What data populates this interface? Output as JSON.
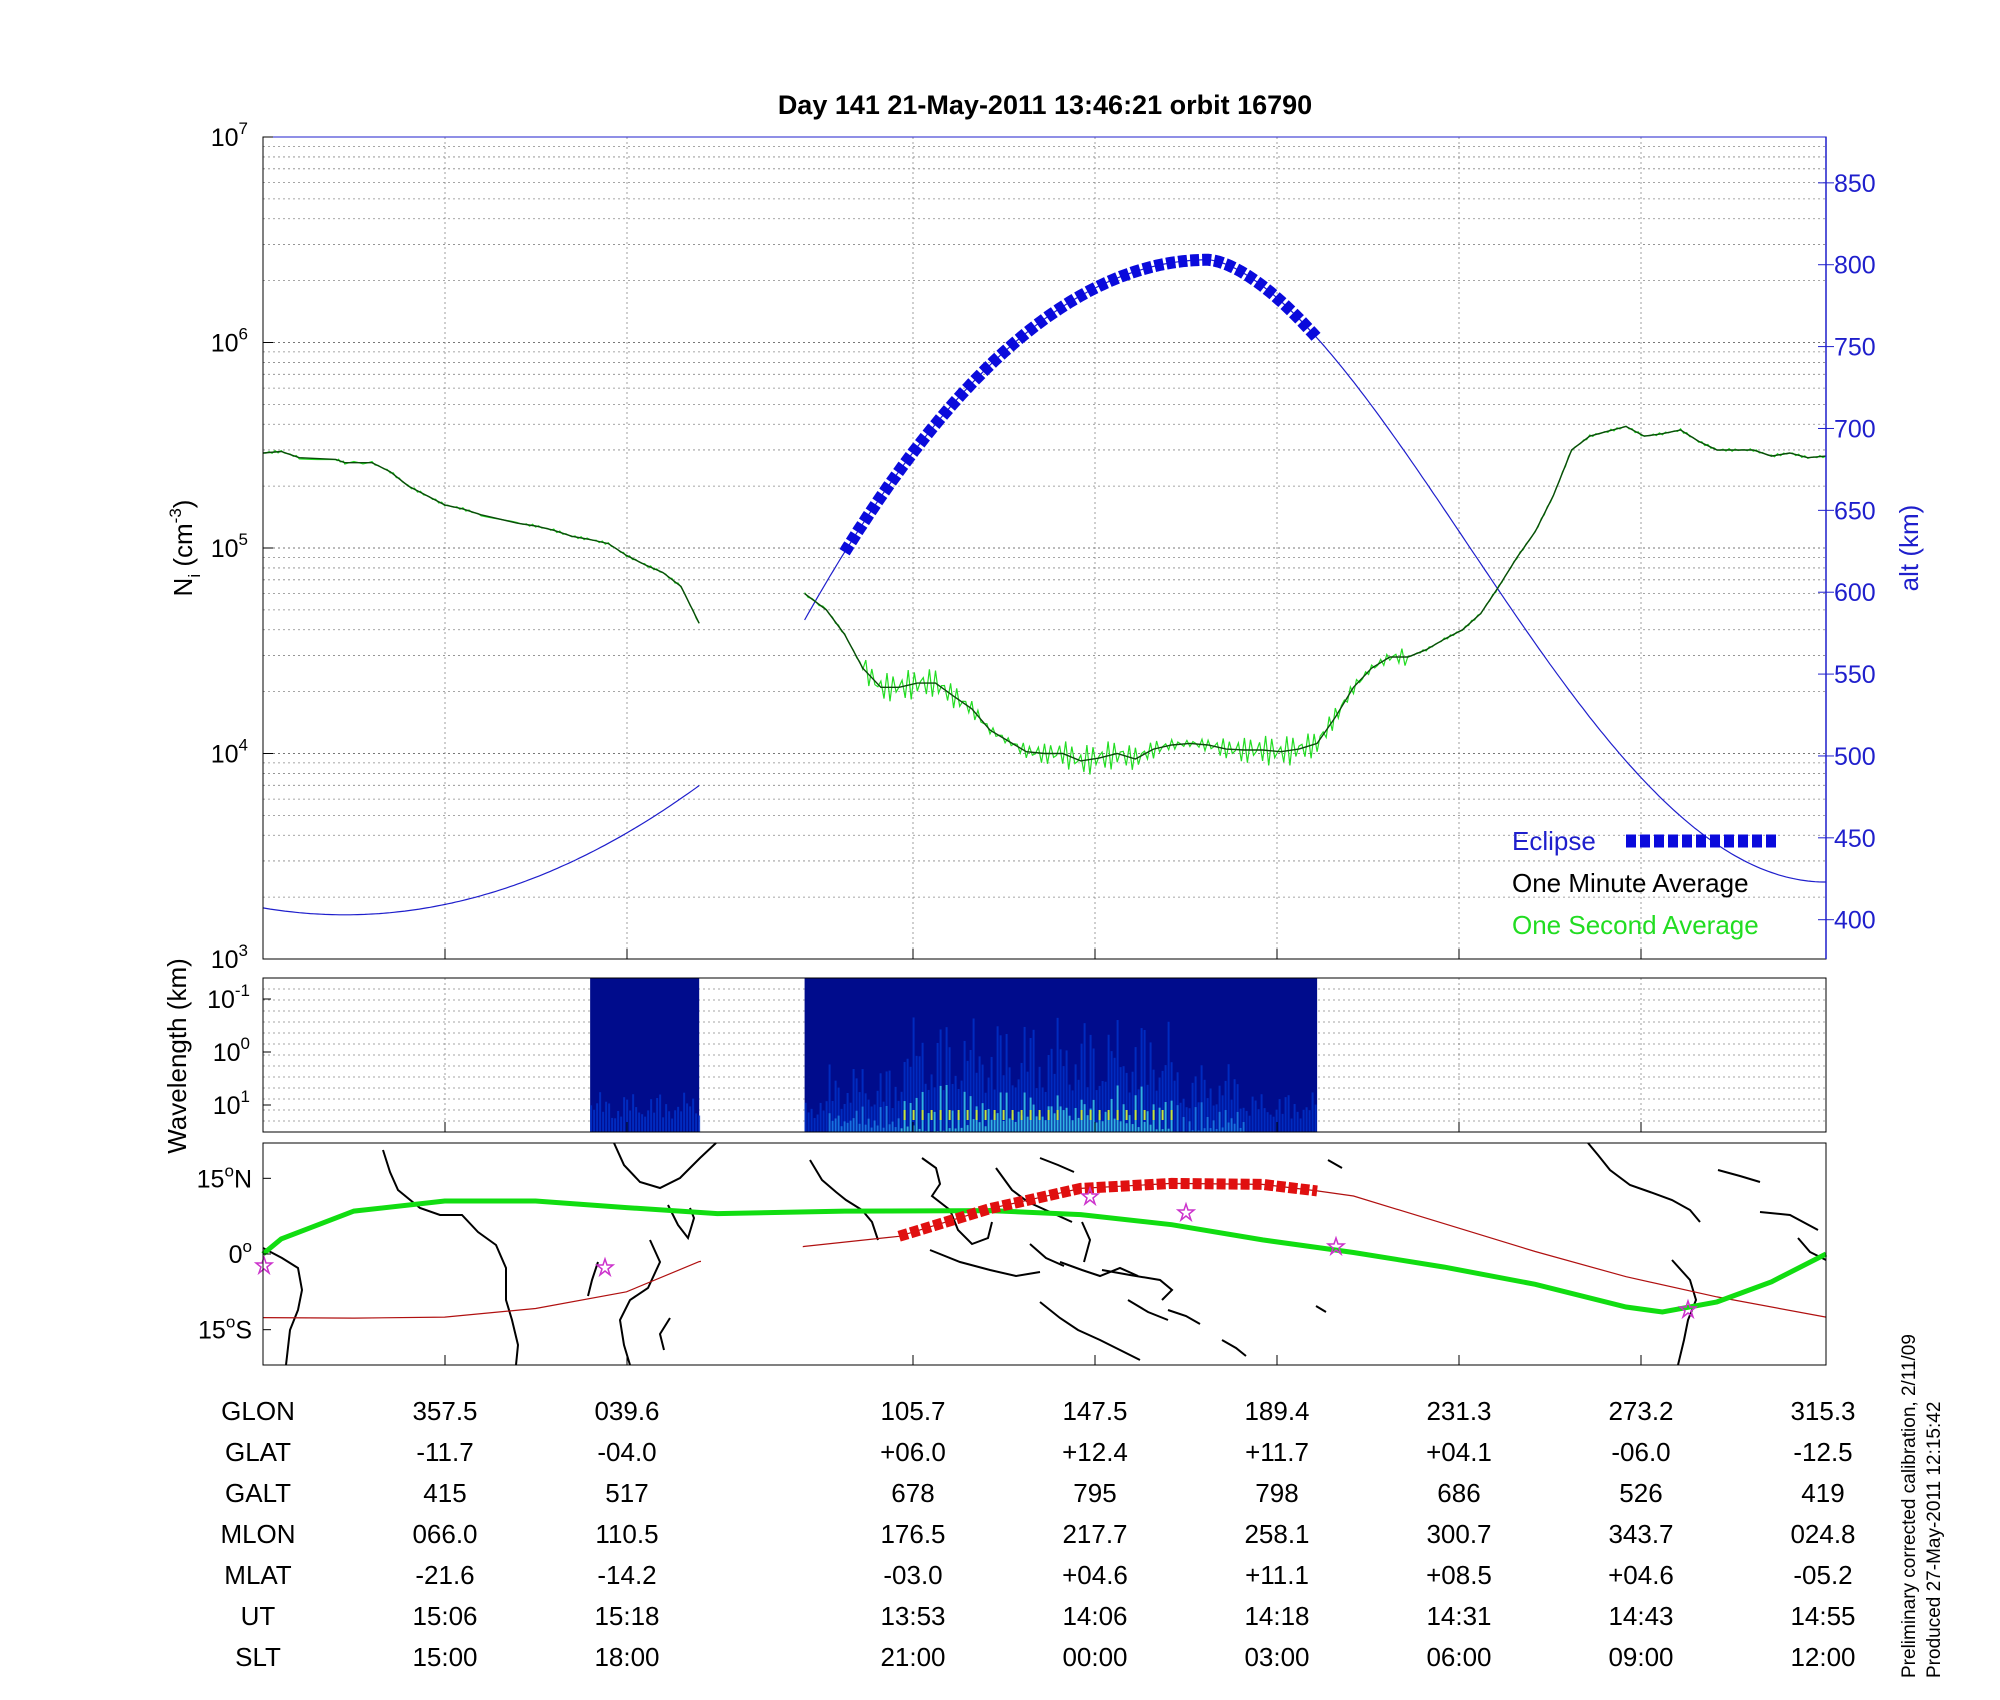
{
  "chart_data": [
    {
      "type": "line",
      "title": "Day 141  21-May-2011 13:46:21   orbit 16790",
      "ylabel": "N",
      "ylabel_sub": "i",
      "ylabel_unit_open": " (cm",
      "ylabel_unit_exp": "-3",
      "ylabel_unit_close": ")",
      "yscale": "log",
      "ylim": [
        1000,
        10000000
      ],
      "y_ticks": [
        {
          "base": "10",
          "exp": "3",
          "value": 1000
        },
        {
          "base": "10",
          "exp": "4",
          "value": 10000
        },
        {
          "base": "10",
          "exp": "5",
          "value": 100000
        },
        {
          "base": "10",
          "exp": "6",
          "value": 1000000
        },
        {
          "base": "10",
          "exp": "7",
          "value": 10000000
        }
      ],
      "y2label": "alt (km)",
      "y2lim": [
        376,
        878
      ],
      "y2_ticks": [
        "400",
        "450",
        "500",
        "550",
        "600",
        "650",
        "700",
        "750",
        "800",
        "850"
      ],
      "grid": true,
      "legend_position": "bottom-right",
      "legend": {
        "eclipse": "Eclipse",
        "minute": "One Minute Average",
        "second": "One Second Average"
      },
      "x_range": [
        0,
        8.6
      ],
      "density_segments": [
        [
          [
            0,
            290000.0
          ],
          [
            0.1,
            295000.0
          ],
          [
            0.2,
            275000.0
          ],
          [
            0.4,
            270000.0
          ],
          [
            0.45,
            260000.0
          ],
          [
            0.6,
            260000.0
          ],
          [
            0.7,
            235000.0
          ],
          [
            0.8,
            200000.0
          ],
          [
            0.9,
            180000.0
          ],
          [
            1.0,
            162000.0
          ],
          [
            1.1,
            155000.0
          ],
          [
            1.2,
            145000.0
          ],
          [
            1.4,
            132000.0
          ],
          [
            1.5,
            128000.0
          ],
          [
            1.6,
            122000.0
          ],
          [
            1.7,
            114000.0
          ],
          [
            1.8,
            110000.0
          ],
          [
            1.9,
            105000.0
          ],
          [
            2.0,
            92000.0
          ],
          [
            2.1,
            83000.0
          ],
          [
            2.2,
            76000.0
          ],
          [
            2.3,
            65000.0
          ],
          [
            2.4,
            43000.0
          ]
        ],
        [
          [
            2.98,
            60000.0
          ],
          [
            3.1,
            50000.0
          ],
          [
            3.2,
            38000.0
          ],
          [
            3.3,
            26000.0
          ],
          [
            3.4,
            21000.0
          ],
          [
            3.5,
            21000.0
          ],
          [
            3.6,
            22000.0
          ],
          [
            3.7,
            22000.0
          ],
          [
            3.8,
            19000.0
          ],
          [
            3.9,
            16500.0
          ],
          [
            4.0,
            13000.0
          ],
          [
            4.1,
            11500.0
          ],
          [
            4.2,
            10200.0
          ],
          [
            4.3,
            10000.0
          ],
          [
            4.4,
            10000.0
          ],
          [
            4.5,
            9200.0
          ],
          [
            4.6,
            9500.0
          ],
          [
            4.7,
            10000.0
          ],
          [
            4.8,
            9400.0
          ],
          [
            4.9,
            10500.0
          ],
          [
            5.0,
            11000.0
          ],
          [
            5.1,
            11200.0
          ],
          [
            5.2,
            11000.0
          ],
          [
            5.3,
            10500.0
          ],
          [
            5.4,
            10400.0
          ],
          [
            5.5,
            10400.0
          ],
          [
            5.6,
            10200.0
          ],
          [
            5.7,
            10500.0
          ],
          [
            5.8,
            11200.0
          ],
          [
            5.9,
            15000.0
          ],
          [
            6.0,
            21000.0
          ],
          [
            6.1,
            26000.0
          ],
          [
            6.2,
            29500.0
          ],
          [
            6.3,
            29500.0
          ],
          [
            6.4,
            32000.0
          ],
          [
            6.5,
            36000.0
          ],
          [
            6.6,
            40000.0
          ],
          [
            6.7,
            48000.0
          ],
          [
            6.8,
            65000.0
          ],
          [
            6.9,
            90000.0
          ],
          [
            7.0,
            120000.0
          ],
          [
            7.1,
            180000.0
          ],
          [
            7.2,
            300000.0
          ],
          [
            7.3,
            350000.0
          ],
          [
            7.4,
            370000.0
          ],
          [
            7.5,
            390000.0
          ],
          [
            7.6,
            350000.0
          ],
          [
            7.7,
            360000.0
          ],
          [
            7.8,
            375000.0
          ],
          [
            7.9,
            330000.0
          ],
          [
            8.0,
            300000.0
          ],
          [
            8.1,
            300000.0
          ],
          [
            8.2,
            300000.0
          ],
          [
            8.3,
            280000.0
          ],
          [
            8.4,
            290000.0
          ],
          [
            8.5,
            275000.0
          ],
          [
            8.6,
            280000.0
          ]
        ]
      ],
      "altitude_segments": [
        {
          "x_from": 0,
          "x_to": 2.4,
          "min_x": 0.45,
          "min_alt": 403,
          "model": "left"
        },
        {
          "x_from": 2.98,
          "x_to": 8.6,
          "model": "right"
        }
      ],
      "altitude_model": {
        "amplitude": 200,
        "min": 403,
        "min_x": 0.45,
        "peak_x": 5.2,
        "peak_alt": 803
      },
      "eclipse_x": [
        3.2,
        5.8
      ]
    },
    {
      "type": "heatmap",
      "ylabel": "Wavelength (km)",
      "y_ticks": [
        {
          "base": "10",
          "exp": "-1"
        },
        {
          "base": "10",
          "exp": "0"
        },
        {
          "base": "10",
          "exp": "1"
        }
      ],
      "blocks_x": [
        [
          1.8,
          2.4
        ],
        [
          2.98,
          5.8
        ]
      ],
      "colorscale": [
        "#000c8c",
        "#0033cc",
        "#1a7fe6",
        "#37c9e6",
        "#c4e63d"
      ]
    },
    {
      "type": "map",
      "y_ticks": [
        {
          "deg": "15",
          "deg_mark": "o",
          "hemi": "N",
          "lat": 15
        },
        {
          "deg": "0",
          "deg_mark": "o",
          "hemi": "",
          "lat": 0
        },
        {
          "deg": "15",
          "deg_mark": "o",
          "hemi": "S",
          "lat": -15
        }
      ],
      "track_geographic": [
        [
          0,
          0
        ],
        [
          0.1,
          3
        ],
        [
          0.5,
          8.5
        ],
        [
          1.0,
          10.5
        ],
        [
          1.5,
          10.5
        ],
        [
          2.0,
          9.2
        ],
        [
          2.5,
          8.0
        ],
        [
          3.2,
          8.5
        ],
        [
          4.0,
          8.6
        ],
        [
          4.5,
          7.8
        ],
        [
          5.0,
          5.8
        ],
        [
          5.5,
          2.8
        ],
        [
          6.0,
          0.3
        ],
        [
          6.5,
          -2.6
        ],
        [
          7.0,
          -6.0
        ],
        [
          7.5,
          -10.5
        ],
        [
          7.7,
          -11.5
        ],
        [
          8.0,
          -9.5
        ],
        [
          8.3,
          -5.5
        ],
        [
          8.6,
          0
        ]
      ],
      "track_magnetic": [
        [
          0,
          -12.6
        ],
        [
          0.5,
          -12.7
        ],
        [
          1.0,
          -12.5
        ],
        [
          1.5,
          -10.8
        ],
        [
          2.0,
          -7.5
        ],
        [
          2.4,
          -1.5
        ],
        [
          2.98,
          1.5
        ],
        [
          3.5,
          3.5
        ],
        [
          4.0,
          9.0
        ],
        [
          4.5,
          13.0
        ],
        [
          5.0,
          14.0
        ],
        [
          5.5,
          13.8
        ],
        [
          5.8,
          12.5
        ],
        [
          6.0,
          11.5
        ],
        [
          6.5,
          6.0
        ],
        [
          7.0,
          0.5
        ],
        [
          7.5,
          -4.5
        ],
        [
          8.0,
          -8.5
        ],
        [
          8.6,
          -12.5
        ]
      ]
    }
  ],
  "table": {
    "row_labels": [
      "GLON",
      "GLAT",
      "GALT",
      "MLON",
      "MLAT",
      "UT",
      "SLT"
    ],
    "columns": [
      [
        "357.5",
        "-11.7",
        "415",
        "066.0",
        "-21.6",
        "15:06",
        "15:00"
      ],
      [
        "039.6",
        "-04.0",
        "517",
        "110.5",
        "-14.2",
        "15:18",
        "18:00"
      ],
      [
        "105.7",
        "+06.0",
        "678",
        "176.5",
        "-03.0",
        "13:53",
        "21:00"
      ],
      [
        "147.5",
        "+12.4",
        "795",
        "217.7",
        "+04.6",
        "14:06",
        "00:00"
      ],
      [
        "189.4",
        "+11.7",
        "798",
        "258.1",
        "+11.1",
        "14:18",
        "03:00"
      ],
      [
        "231.3",
        "+04.1",
        "686",
        "300.7",
        "+08.5",
        "14:31",
        "06:00"
      ],
      [
        "273.2",
        "-06.0",
        "526",
        "343.7",
        "+04.6",
        "14:43",
        "09:00"
      ],
      [
        "315.3",
        "-12.5",
        "419",
        "024.8",
        "-05.2",
        "14:55",
        "12:00"
      ]
    ]
  },
  "footer": {
    "line1": "Preliminary corrected calibration, 2/11/09",
    "line2": "Produced 27-May-2011 12:15:42"
  },
  "colors": {
    "eclipse": "#0a0adc",
    "altitude": "#1f1fcc",
    "minute_avg": "#0a4a0a",
    "second_avg": "#22dd22",
    "track_geographic": "#11dd11",
    "track_eclipse": "#e01010",
    "track_magnetic": "#b01010"
  }
}
